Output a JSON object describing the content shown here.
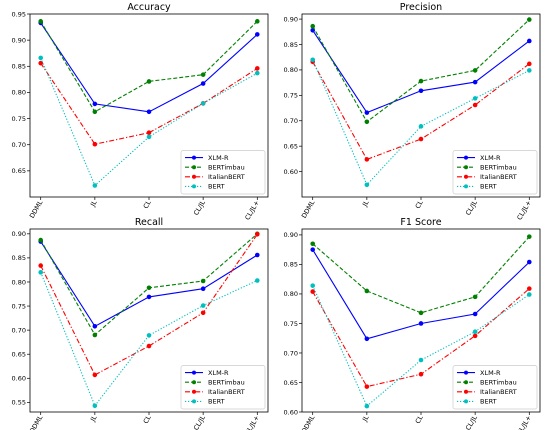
{
  "chart_data": [
    {
      "type": "line",
      "title": "Accuracy",
      "categories": [
        "DDML",
        "JL",
        "CL",
        "CL/JL",
        "CL/JL+"
      ],
      "ylim": [
        0.6,
        0.95
      ],
      "yticks": [
        "0.65",
        "0.70",
        "0.75",
        "0.80",
        "0.85",
        "0.90",
        "0.95"
      ],
      "legend_position": "lower-right",
      "series": [
        {
          "name": "XLM-R",
          "color": "#0000ff",
          "style": "solid",
          "values": [
            0.933,
            0.778,
            0.763,
            0.817,
            0.911
          ]
        },
        {
          "name": "BERTimbau",
          "color": "#008000",
          "style": "dashed",
          "values": [
            0.936,
            0.763,
            0.821,
            0.834,
            0.936
          ]
        },
        {
          "name": "ItalianBERT",
          "color": "#ff0000",
          "style": "dashdot",
          "values": [
            0.856,
            0.701,
            0.723,
            0.779,
            0.846
          ]
        },
        {
          "name": "BERT",
          "color": "#00bfbf",
          "style": "dotted",
          "values": [
            0.866,
            0.622,
            0.715,
            0.779,
            0.837
          ]
        }
      ]
    },
    {
      "type": "line",
      "title": "Precision",
      "categories": [
        "DDML",
        "JL",
        "CL",
        "CL/JL",
        "CL/JL+"
      ],
      "ylim": [
        0.55,
        0.91
      ],
      "yticks": [
        "0.60",
        "0.65",
        "0.70",
        "0.75",
        "0.80",
        "0.85",
        "0.90"
      ],
      "legend_position": "lower-right",
      "series": [
        {
          "name": "XLM-R",
          "color": "#0000ff",
          "style": "solid",
          "values": [
            0.878,
            0.716,
            0.759,
            0.776,
            0.857
          ]
        },
        {
          "name": "BERTimbau",
          "color": "#008000",
          "style": "dashed",
          "values": [
            0.886,
            0.698,
            0.778,
            0.799,
            0.899
          ]
        },
        {
          "name": "ItalianBERT",
          "color": "#ff0000",
          "style": "dashdot",
          "values": [
            0.816,
            0.624,
            0.664,
            0.731,
            0.812
          ]
        },
        {
          "name": "BERT",
          "color": "#00bfbf",
          "style": "dotted",
          "values": [
            0.82,
            0.574,
            0.689,
            0.744,
            0.799
          ]
        }
      ]
    },
    {
      "type": "line",
      "title": "Recall",
      "categories": [
        "DDML",
        "JL",
        "CL",
        "CL/JL",
        "CL/JL+"
      ],
      "ylim": [
        0.53,
        0.91
      ],
      "yticks": [
        "0.55",
        "0.60",
        "0.65",
        "0.70",
        "0.75",
        "0.80",
        "0.85",
        "0.90"
      ],
      "legend_position": "lower-right",
      "series": [
        {
          "name": "XLM-R",
          "color": "#0000ff",
          "style": "solid",
          "values": [
            0.884,
            0.708,
            0.769,
            0.786,
            0.856
          ]
        },
        {
          "name": "BERTimbau",
          "color": "#008000",
          "style": "dashed",
          "values": [
            0.887,
            0.69,
            0.788,
            0.802,
            0.9
          ]
        },
        {
          "name": "ItalianBERT",
          "color": "#ff0000",
          "style": "dashdot",
          "values": [
            0.834,
            0.607,
            0.667,
            0.736,
            0.899
          ]
        },
        {
          "name": "BERT",
          "color": "#00bfbf",
          "style": "dotted",
          "values": [
            0.82,
            0.543,
            0.689,
            0.751,
            0.803
          ]
        }
      ]
    },
    {
      "type": "line",
      "title": "F1 Score",
      "categories": [
        "DDML",
        "JL",
        "CL",
        "CL/JL",
        "CL/JL+"
      ],
      "ylim": [
        0.6,
        0.91
      ],
      "yticks": [
        "0.60",
        "0.65",
        "0.70",
        "0.75",
        "0.80",
        "0.85",
        "0.90"
      ],
      "legend_position": "lower-right",
      "series": [
        {
          "name": "XLM-R",
          "color": "#0000ff",
          "style": "solid",
          "values": [
            0.875,
            0.724,
            0.75,
            0.766,
            0.854
          ]
        },
        {
          "name": "BERTimbau",
          "color": "#008000",
          "style": "dashed",
          "values": [
            0.885,
            0.805,
            0.768,
            0.795,
            0.897
          ]
        },
        {
          "name": "ItalianBERT",
          "color": "#ff0000",
          "style": "dashdot",
          "values": [
            0.804,
            0.643,
            0.664,
            0.729,
            0.809
          ]
        },
        {
          "name": "BERT",
          "color": "#00bfbf",
          "style": "dotted",
          "values": [
            0.814,
            0.61,
            0.688,
            0.736,
            0.799
          ]
        }
      ]
    }
  ]
}
